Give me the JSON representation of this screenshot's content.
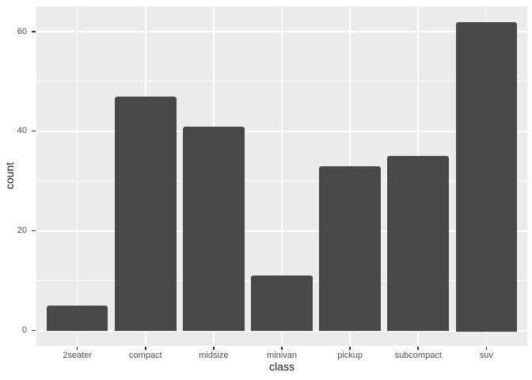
{
  "chart_data": {
    "type": "bar",
    "title": "",
    "xlabel": "class",
    "ylabel": "count",
    "categories": [
      "2seater",
      "compact",
      "midsize",
      "minivan",
      "pickup",
      "subcompact",
      "suv"
    ],
    "values": [
      5,
      47,
      41,
      11,
      33,
      35,
      62
    ],
    "y_major_ticks": [
      0,
      20,
      40,
      60
    ],
    "y_minor_ticks": [
      10,
      30,
      50
    ],
    "ylim": [
      -3.1,
      65.1
    ],
    "grid": true,
    "legend": false,
    "theme": {
      "background": "#FFFFFF",
      "panel_background": "#EBEBEB",
      "grid_color": "#FFFFFF",
      "bar_fill": "#484848",
      "tick_mark_color": "#333333",
      "tick_label_color": "#4D4D4D",
      "axis_title_color": "#1A1A1A"
    }
  }
}
